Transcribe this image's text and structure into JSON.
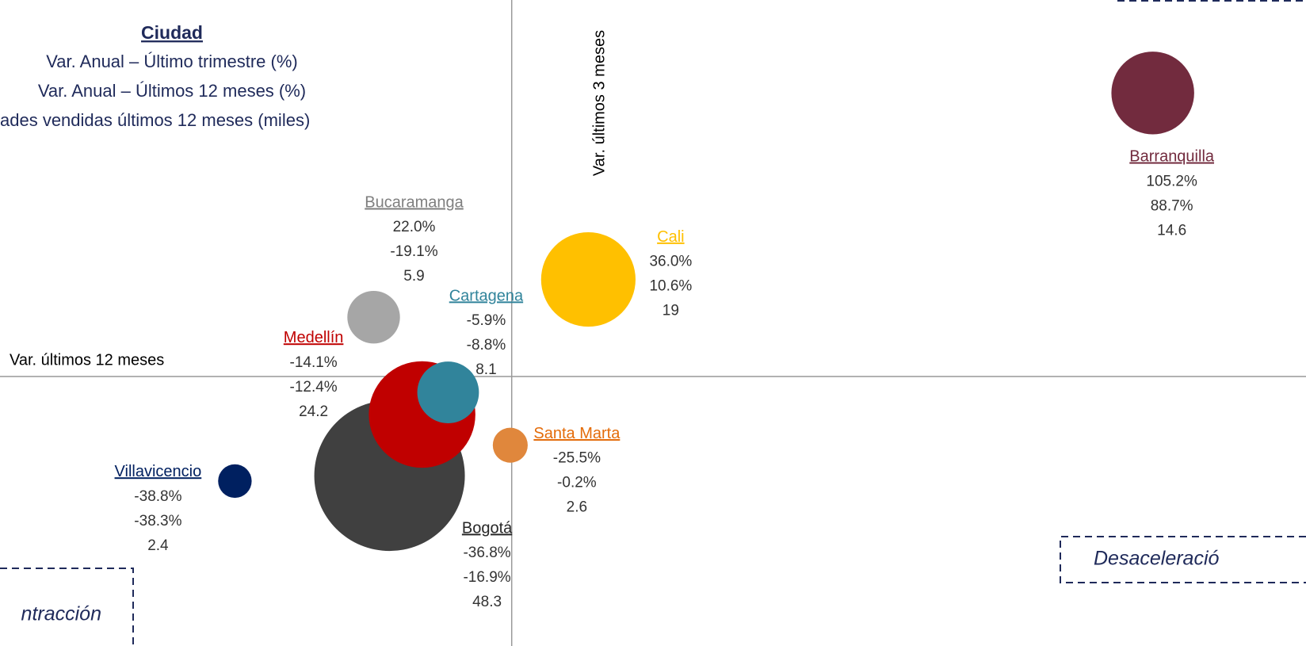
{
  "chart_data": {
    "type": "bubble",
    "legend_title": "Ciudad",
    "legend_lines": [
      "Var. Anual – Último trimestre (%)",
      "Var. Anual – Últimos 12 meses (%)",
      "ades vendidas últimos 12 meses (miles)"
    ],
    "x_label": "Var. últimos 12 meses",
    "y_label": "Var. últimos 3 meses",
    "quadrants": [
      "ntracción",
      "Desaceleració"
    ],
    "xlim": [
      -70.8,
      109.9
    ],
    "ylim": [
      -100,
      139.7
    ],
    "series": [
      {
        "name": "Barranquilla",
        "color": "#722b3e",
        "y": 105.2,
        "y_label": "105.2%",
        "x": 88.7,
        "x_label": "88.7%",
        "size": 14.6
      },
      {
        "name": "Bucaramanga",
        "color": "#a6a6a6",
        "y": 22.0,
        "y_label": "22.0%",
        "x": -19.1,
        "x_label": "-19.1%",
        "size": 5.9
      },
      {
        "name": "Cali",
        "color": "#ffc000",
        "y": 36.0,
        "y_label": "36.0%",
        "x": 10.6,
        "x_label": "10.6%",
        "size": 19.0
      },
      {
        "name": "Bogotá",
        "color": "#404040",
        "y": -36.8,
        "y_label": "-36.8%",
        "x": -16.9,
        "x_label": "-16.9%",
        "size": 48.3
      },
      {
        "name": "Medellín",
        "color": "#c00000",
        "y": -14.1,
        "y_label": "-14.1%",
        "x": -12.4,
        "x_label": "-12.4%",
        "size": 24.2
      },
      {
        "name": "Cartagena",
        "color": "#31849b",
        "y": -5.9,
        "y_label": "-5.9%",
        "x": -8.8,
        "x_label": "-8.8%",
        "size": 8.1
      },
      {
        "name": "Santa Marta",
        "color": "#e0873c",
        "y": -25.5,
        "y_label": "-25.5%",
        "x": -0.2,
        "x_label": "-0.2%",
        "size": 2.6
      },
      {
        "name": "Villavicencio",
        "color": "#002060",
        "y": -38.8,
        "y_label": "-38.8%",
        "x": -38.3,
        "x_label": "-38.3%",
        "size": 2.4
      }
    ]
  }
}
